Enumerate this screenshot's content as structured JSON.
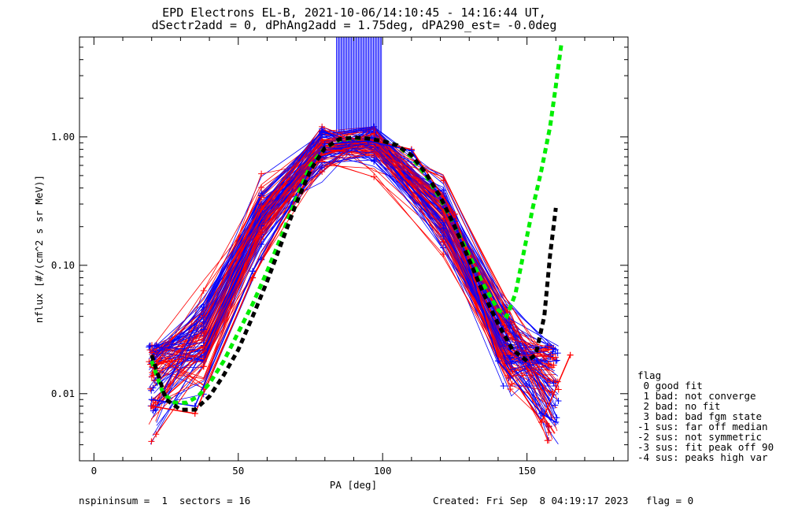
{
  "chart_data": {
    "type": "line",
    "title": "EPD Electrons EL-B, 2021-10-06/14:10:45 - 14:16:44 UT,",
    "subtitle": "dSectr2add = 0, dPhAng2add = 1.75deg, dPA290_est=  -0.0deg",
    "xlabel": "PA [deg]",
    "ylabel": "nflux [#/(cm^2 s sr MeV)]",
    "xlim": [
      -5,
      185
    ],
    "ylim": [
      0.003,
      6
    ],
    "yscale": "log",
    "xticks": [
      0,
      50,
      100,
      150
    ],
    "yticks": [
      0.01,
      0.1,
      1.0
    ],
    "ytick_labels": [
      "0.01",
      "0.10",
      "1.00"
    ],
    "series": [
      {
        "color": "#ff0000",
        "x": [
          20,
          35,
          55,
          80,
          95,
          110,
          125,
          140,
          155,
          165
        ],
        "y": [
          0.008,
          0.007,
          0.08,
          0.85,
          0.95,
          0.8,
          0.25,
          0.02,
          0.006,
          0.02
        ]
      },
      {
        "color": "#0000ff",
        "x": [
          20,
          35,
          55,
          80,
          95,
          110,
          125,
          140,
          155,
          160
        ],
        "y": [
          0.009,
          0.008,
          0.09,
          0.88,
          0.93,
          0.78,
          0.22,
          0.018,
          0.007,
          0.006
        ]
      },
      {
        "color": "#00ee00",
        "style": "dashed",
        "x": [
          20,
          24,
          28,
          32,
          36,
          40,
          45,
          50,
          55,
          60,
          65,
          70,
          75,
          80,
          85,
          90,
          95,
          100,
          105,
          110,
          115,
          120,
          125,
          130,
          135,
          140,
          143,
          146,
          149,
          152,
          155,
          158,
          160,
          162
        ],
        "y": [
          0.018,
          0.01,
          0.0085,
          0.0085,
          0.0095,
          0.012,
          0.018,
          0.03,
          0.05,
          0.09,
          0.17,
          0.33,
          0.6,
          0.82,
          0.95,
          0.98,
          0.97,
          0.93,
          0.86,
          0.7,
          0.5,
          0.33,
          0.2,
          0.12,
          0.07,
          0.045,
          0.04,
          0.06,
          0.13,
          0.28,
          0.55,
          1.2,
          2.5,
          5.5
        ]
      },
      {
        "color": "#000000",
        "style": "dashed",
        "x": [
          20,
          25,
          30,
          35,
          40,
          45,
          50,
          55,
          60,
          65,
          70,
          75,
          80,
          85,
          90,
          95,
          100,
          105,
          110,
          115,
          120,
          125,
          130,
          135,
          140,
          145,
          150,
          153,
          156,
          158,
          160
        ],
        "y": [
          0.02,
          0.009,
          0.0075,
          0.0075,
          0.0095,
          0.014,
          0.022,
          0.04,
          0.075,
          0.15,
          0.3,
          0.55,
          0.82,
          0.96,
          0.99,
          0.97,
          0.93,
          0.86,
          0.72,
          0.52,
          0.34,
          0.2,
          0.11,
          0.06,
          0.035,
          0.022,
          0.018,
          0.02,
          0.04,
          0.12,
          0.28
        ]
      }
    ],
    "legend": {
      "position": "right",
      "title": "flag",
      "entries": [
        " 0 good fit",
        " 1 bad: not converge",
        " 2 bad: no fit",
        " 3 bad: bad fgm state",
        "-1 sus: far off median",
        "-2 sus: not symmetric",
        "-3 sus: fit peak off 90",
        "-4 sus: peaks high var"
      ]
    },
    "grid": false
  },
  "footer": {
    "left": "nspininsum =  1  sectors = 16",
    "right": "Created: Fri Sep  8 04:19:17 2023   flag = 0"
  }
}
